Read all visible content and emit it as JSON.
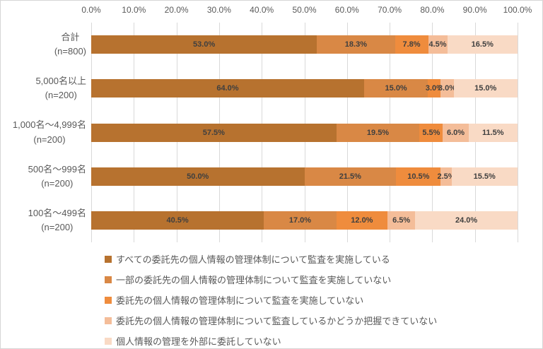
{
  "chart_data": {
    "type": "bar",
    "stacked": true,
    "orientation": "horizontal",
    "grid": true,
    "legend_position": "bottom",
    "value_format": "percent-one-decimal",
    "x_axis": {
      "min": 0,
      "max": 100,
      "tick_step": 10,
      "tick_labels": [
        "0.0%",
        "10.0%",
        "20.0%",
        "30.0%",
        "40.0%",
        "50.0%",
        "60.0%",
        "70.0%",
        "80.0%",
        "90.0%",
        "100.0%"
      ]
    },
    "categories": [
      {
        "label": "合計",
        "n_label": "(n=800)"
      },
      {
        "label": "5,000名以上",
        "n_label": "(n=200)"
      },
      {
        "label": "1,000名～4,999名",
        "n_label": "(n=200)"
      },
      {
        "label": "500名～999名",
        "n_label": "(n=200)"
      },
      {
        "label": "100名～499名",
        "n_label": "(n=200)"
      }
    ],
    "series": [
      {
        "name": "すべての委託先の個人情報の管理体制について監査を実施している",
        "color": "#B7722F",
        "values": [
          53.0,
          64.0,
          57.5,
          50.0,
          40.5
        ]
      },
      {
        "name": "一部の委託先の個人情報の管理体制について監査を実施していない",
        "color": "#D98845",
        "values": [
          18.3,
          15.0,
          19.5,
          21.5,
          17.0
        ]
      },
      {
        "name": "委託先の個人情報の管理体制について監査を実施していない",
        "color": "#EF8C3D",
        "values": [
          7.8,
          3.0,
          5.5,
          10.5,
          12.0
        ]
      },
      {
        "name": "委託先の個人情報の管理体制について監査しているかどうか把握できていない",
        "color": "#F4BD99",
        "values": [
          4.5,
          3.0,
          6.0,
          2.5,
          6.5
        ]
      },
      {
        "name": "個人情報の管理を外部に委託していない",
        "color": "#F9DAC5",
        "values": [
          16.5,
          15.0,
          11.5,
          15.5,
          24.0
        ]
      }
    ]
  },
  "style_colors": {
    "gridline": "#D9D9D9",
    "axis_text": "#595959",
    "data_label_text": "#3F3F3F",
    "frame_border": "#D6D6D6",
    "background": "#FFFFFF"
  }
}
